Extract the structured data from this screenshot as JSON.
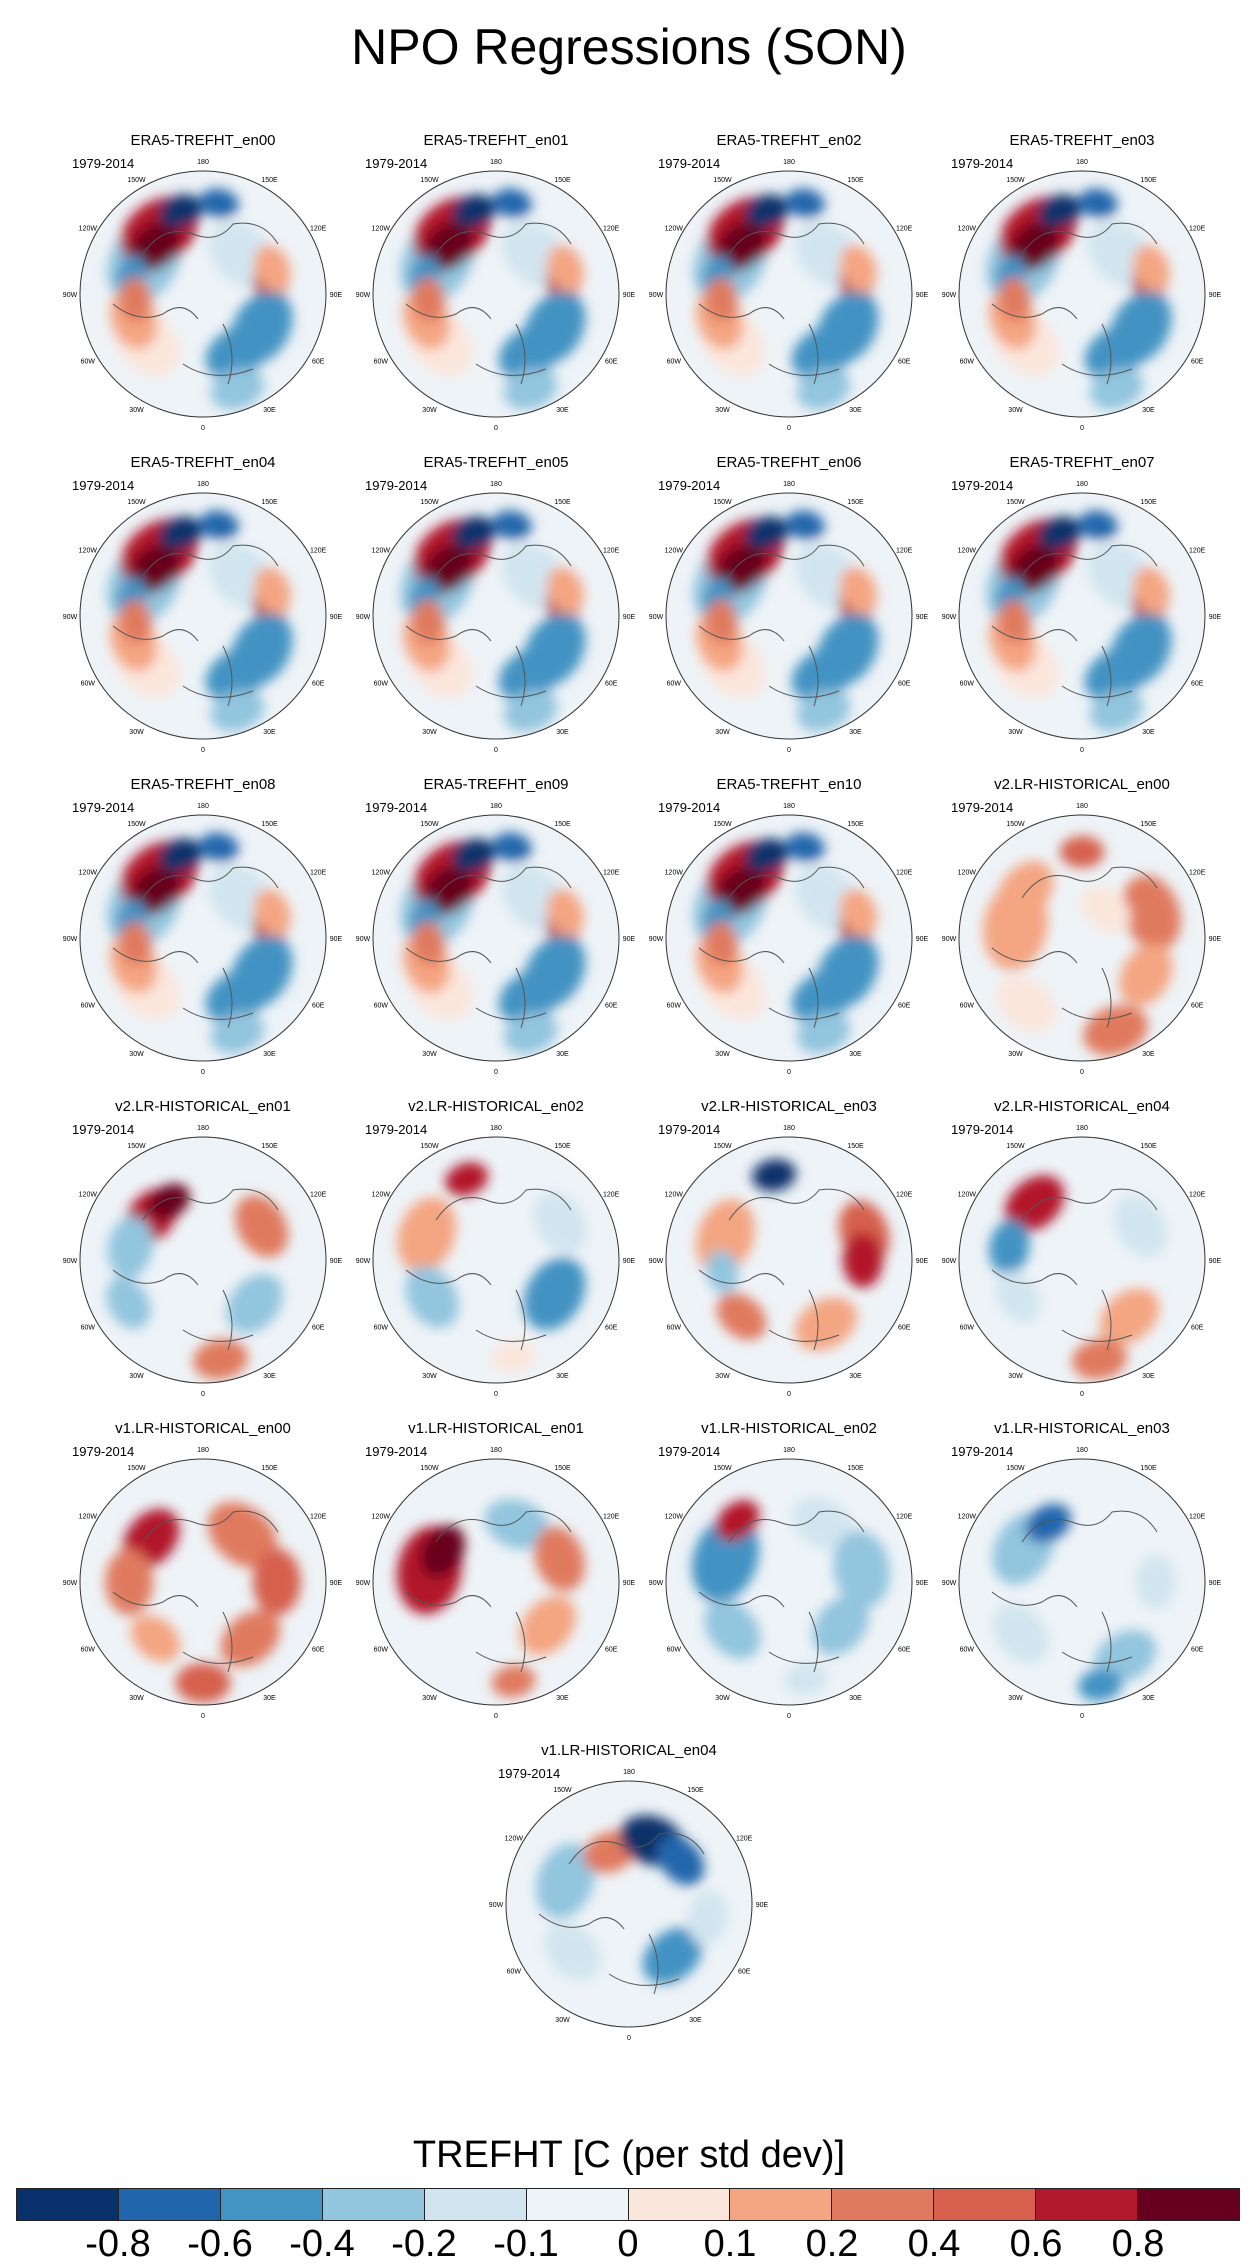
{
  "title": "NPO Regressions (SON)",
  "chart_data": {
    "type": "heatmap",
    "projection": "north polar stereographic",
    "variable_label": "TREFHT [C (per std dev)]",
    "period": "1979-2014",
    "longitude_labels": [
      "180",
      "150W",
      "150E",
      "120W",
      "120E",
      "90W",
      "90E",
      "60W",
      "60E",
      "30W",
      "30E",
      "0"
    ],
    "panels": [
      {
        "title": "ERA5-TREFHT_en00",
        "pattern": "era5"
      },
      {
        "title": "ERA5-TREFHT_en01",
        "pattern": "era5"
      },
      {
        "title": "ERA5-TREFHT_en02",
        "pattern": "era5"
      },
      {
        "title": "ERA5-TREFHT_en03",
        "pattern": "era5"
      },
      {
        "title": "ERA5-TREFHT_en04",
        "pattern": "era5"
      },
      {
        "title": "ERA5-TREFHT_en05",
        "pattern": "era5"
      },
      {
        "title": "ERA5-TREFHT_en06",
        "pattern": "era5"
      },
      {
        "title": "ERA5-TREFHT_en07",
        "pattern": "era5"
      },
      {
        "title": "ERA5-TREFHT_en08",
        "pattern": "era5"
      },
      {
        "title": "ERA5-TREFHT_en09",
        "pattern": "era5"
      },
      {
        "title": "ERA5-TREFHT_en10",
        "pattern": "era5"
      },
      {
        "title": "v2.LR-HISTORICAL_en00",
        "pattern": "warm"
      },
      {
        "title": "v2.LR-HISTORICAL_en01",
        "pattern": "mixed_a"
      },
      {
        "title": "v2.LR-HISTORICAL_en02",
        "pattern": "mixed_b"
      },
      {
        "title": "v2.LR-HISTORICAL_en03",
        "pattern": "warm_b"
      },
      {
        "title": "v2.LR-HISTORICAL_en04",
        "pattern": "mixed_c"
      },
      {
        "title": "v1.LR-HISTORICAL_en00",
        "pattern": "warm_c"
      },
      {
        "title": "v1.LR-HISTORICAL_en01",
        "pattern": "warm_d"
      },
      {
        "title": "v1.LR-HISTORICAL_en02",
        "pattern": "cool"
      },
      {
        "title": "v1.LR-HISTORICAL_en03",
        "pattern": "cool_b"
      },
      {
        "title": "v1.LR-HISTORICAL_en04",
        "pattern": "cool_c"
      }
    ],
    "colorbar": {
      "levels": [
        "-0.8",
        "-0.6",
        "-0.4",
        "-0.2",
        "-0.1",
        "0",
        "0.1",
        "0.2",
        "0.4",
        "0.6",
        "0.8"
      ],
      "colors": [
        "#08306b",
        "#2166ac",
        "#4393c3",
        "#92c5de",
        "#d1e5f0",
        "#eef3f7",
        "#fbe6dc",
        "#f4a582",
        "#e07a5f",
        "#d6604d",
        "#b2182b",
        "#67001f"
      ]
    }
  }
}
